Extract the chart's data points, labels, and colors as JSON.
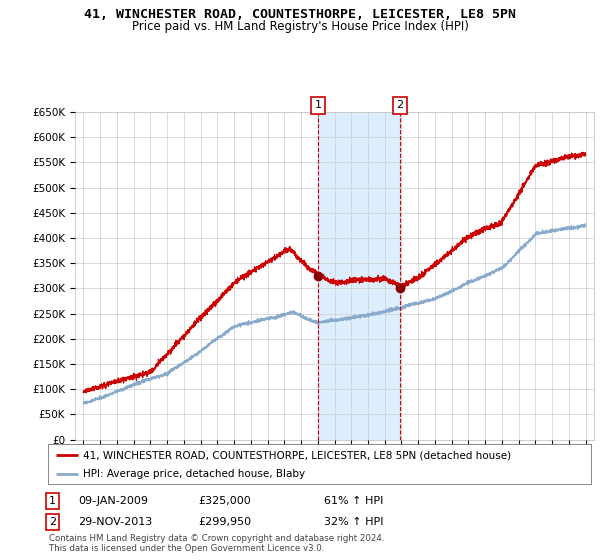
{
  "title": "41, WINCHESTER ROAD, COUNTESTHORPE, LEICESTER, LE8 5PN",
  "subtitle": "Price paid vs. HM Land Registry's House Price Index (HPI)",
  "legend_line1": "41, WINCHESTER ROAD, COUNTESTHORPE, LEICESTER, LE8 5PN (detached house)",
  "legend_line2": "HPI: Average price, detached house, Blaby",
  "sale1_label": "1",
  "sale1_date": "09-JAN-2009",
  "sale1_price": "£325,000",
  "sale1_hpi": "61% ↑ HPI",
  "sale2_label": "2",
  "sale2_date": "29-NOV-2013",
  "sale2_price": "£299,950",
  "sale2_hpi": "32% ↑ HPI",
  "footnote": "Contains HM Land Registry data © Crown copyright and database right 2024.\nThis data is licensed under the Open Government Licence v3.0.",
  "ylim": [
    0,
    650000
  ],
  "yticks": [
    0,
    50000,
    100000,
    150000,
    200000,
    250000,
    300000,
    350000,
    400000,
    450000,
    500000,
    550000,
    600000,
    650000
  ],
  "ytick_labels": [
    "£0",
    "£50K",
    "£100K",
    "£150K",
    "£200K",
    "£250K",
    "£300K",
    "£350K",
    "£400K",
    "£450K",
    "£500K",
    "£550K",
    "£600K",
    "£650K"
  ],
  "xlim_start": 1994.5,
  "xlim_end": 2025.5,
  "sale1_x": 2009.03,
  "sale1_y": 325000,
  "sale2_x": 2013.92,
  "sale2_y": 299950,
  "shade_x_start": 2009.03,
  "shade_x_end": 2013.92,
  "vline1_x": 2009.03,
  "vline2_x": 2013.92,
  "line_color_red": "#cc0000",
  "line_color_blue": "#88aacc",
  "shade_color": "#ddeeff",
  "background_color": "#ffffff",
  "grid_color": "#cccccc",
  "title_fontsize": 9.5,
  "subtitle_fontsize": 8.5,
  "axis_fontsize": 7.5,
  "legend_fontsize": 8,
  "annotation_fontsize": 8
}
